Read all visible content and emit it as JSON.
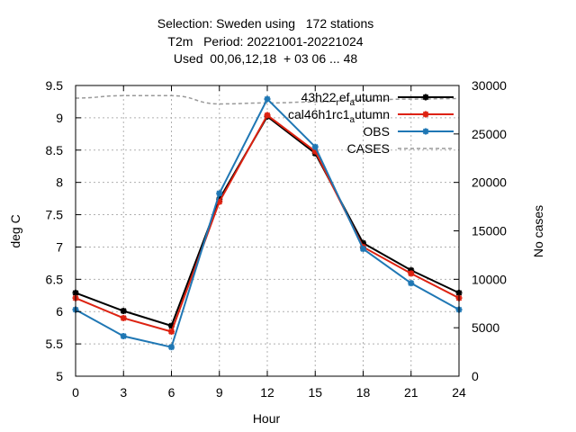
{
  "chart_data": {
    "type": "line",
    "title_lines": [
      "Selection: Sweden using   172 stations",
      "T2m   Period: 20221001-20221024",
      "Used  00,06,12,18  + 03 06 ... 48"
    ],
    "xlabel": "Hour",
    "ylabel": "deg C",
    "y2label": "No cases",
    "x": [
      0,
      3,
      6,
      9,
      12,
      15,
      18,
      21,
      24
    ],
    "xlim": [
      0,
      24
    ],
    "ylim": [
      5,
      9.5
    ],
    "y2lim": [
      0,
      30000
    ],
    "xticks": [
      "0",
      "3",
      "6",
      "9",
      "12",
      "15",
      "18",
      "21",
      "24"
    ],
    "yticks": [
      "5",
      "5.5",
      "6",
      "6.5",
      "7",
      "7.5",
      "8",
      "8.5",
      "9",
      "9.5"
    ],
    "y2ticks": [
      "0",
      "5000",
      "10000",
      "15000",
      "20000",
      "25000",
      "30000"
    ],
    "grid": true,
    "legend_position": "top-right",
    "series": [
      {
        "name": "43h22_ref_autumn",
        "legend_main": "43h22",
        "legend_sub1": "r",
        "legend_mid": "ef",
        "legend_sub2": "a",
        "legend_tail": "utumn",
        "color": "#000000",
        "axis": "y",
        "values": [
          6.29,
          6.01,
          5.78,
          7.74,
          9.02,
          8.45,
          7.06,
          6.64,
          6.29
        ]
      },
      {
        "name": "cal46h1rc1_autumn",
        "legend_main": "cal46h1rc1",
        "legend_sub1": "",
        "legend_mid": "",
        "legend_sub2": "a",
        "legend_tail": "utumn",
        "color": "#dd2211",
        "axis": "y",
        "values": [
          6.21,
          5.9,
          5.69,
          7.7,
          9.04,
          8.48,
          7.0,
          6.59,
          6.21
        ]
      },
      {
        "name": "OBS",
        "legend_main": "OBS",
        "legend_sub1": "",
        "legend_mid": "",
        "legend_sub2": "",
        "legend_tail": "",
        "color": "#1f77b4",
        "axis": "y",
        "values": [
          6.03,
          5.62,
          5.45,
          7.83,
          9.29,
          8.55,
          6.97,
          6.44,
          6.03
        ]
      },
      {
        "name": "CASES",
        "legend_main": "CASES",
        "legend_sub1": "",
        "legend_mid": "",
        "legend_sub2": "",
        "legend_tail": "",
        "color": "#999999",
        "axis": "y2",
        "values": [
          28700,
          28950,
          28950,
          28100,
          28200,
          28300,
          28500,
          28600,
          28650
        ]
      }
    ]
  }
}
